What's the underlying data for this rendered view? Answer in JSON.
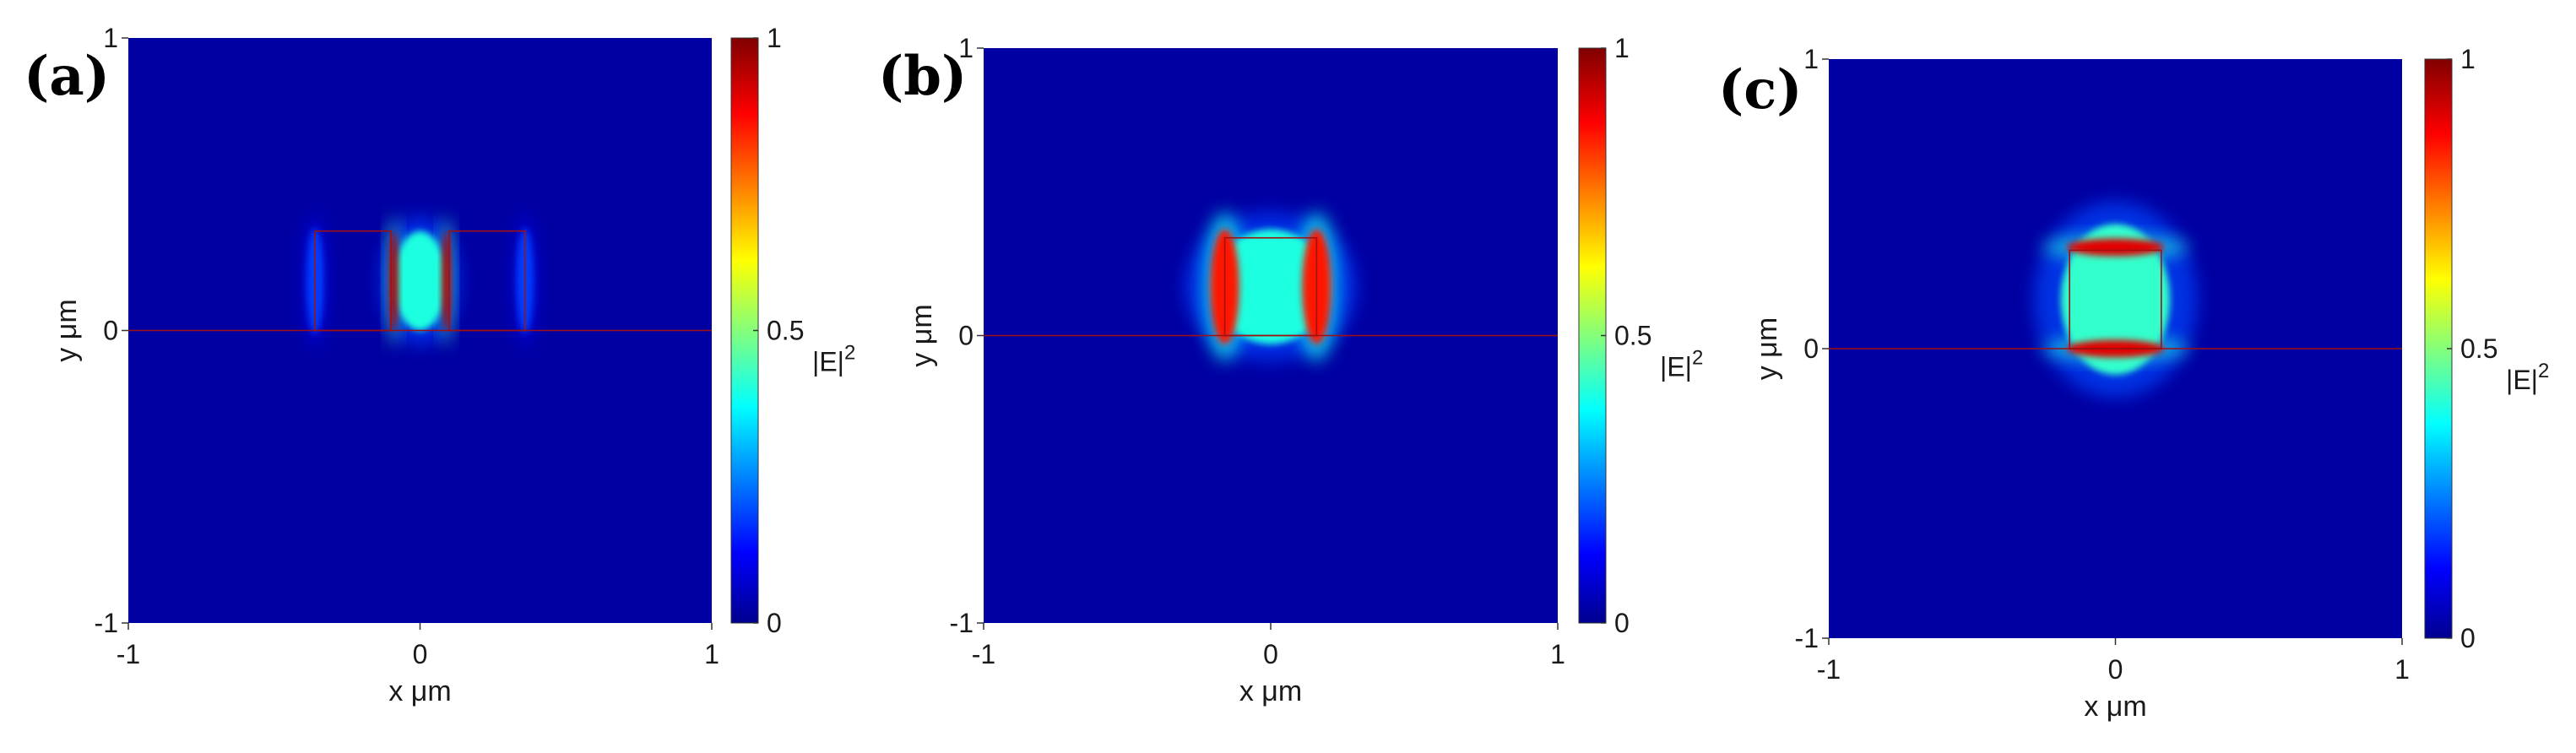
{
  "colormap": [
    "#00008f",
    "#0000ff",
    "#00ffff",
    "#ffff00",
    "#ff0000",
    "#800000"
  ],
  "chart_data": [
    {
      "type": "heatmap",
      "panel_label": "(a)",
      "xlabel": "x μm",
      "ylabel": "y μm",
      "xlim": [
        -1,
        1
      ],
      "ylim": [
        -1,
        1
      ],
      "x_ticks": [
        "-1",
        "0",
        "1"
      ],
      "y_ticks": [
        "-1",
        "0",
        "1"
      ],
      "colorbar": {
        "label": "|E|",
        "label_sup": "2",
        "range": [
          0,
          1
        ],
        "ticks": [
          "0",
          "0.5",
          "1"
        ]
      },
      "structure": "two rectangular waveguides separated by a narrow slot, on a substrate line at y = 0",
      "rects": [
        {
          "x0": -0.36,
          "x1": -0.1,
          "y0": 0.0,
          "y1": 0.34
        },
        {
          "x0": 0.1,
          "x1": 0.36,
          "y0": 0.0,
          "y1": 0.34
        }
      ],
      "substrate_y": 0.0,
      "field_spots": [
        {
          "x": 0.0,
          "y": 0.17,
          "rx": 0.09,
          "ry": 0.17,
          "intensity": 0.4
        },
        {
          "x": -0.09,
          "y": 0.17,
          "rx": 0.015,
          "ry": 0.17,
          "intensity": 0.95
        },
        {
          "x": 0.09,
          "y": 0.17,
          "rx": 0.015,
          "ry": 0.17,
          "intensity": 0.95
        },
        {
          "x": -0.36,
          "y": 0.17,
          "rx": 0.03,
          "ry": 0.18,
          "intensity": 0.18
        },
        {
          "x": 0.36,
          "y": 0.17,
          "rx": 0.03,
          "ry": 0.18,
          "intensity": 0.18
        }
      ]
    },
    {
      "type": "heatmap",
      "panel_label": "(b)",
      "xlabel": "x μm",
      "ylabel": "y μm",
      "xlim": [
        -1,
        1
      ],
      "ylim": [
        -1,
        1
      ],
      "x_ticks": [
        "-1",
        "0",
        "1"
      ],
      "y_ticks": [
        "-1",
        "0",
        "1"
      ],
      "colorbar": {
        "label": "|E|",
        "label_sup": "2",
        "range": [
          0,
          1
        ],
        "ticks": [
          "0",
          "0.5",
          "1"
        ]
      },
      "structure": "single rectangular waveguide on a substrate line at y = 0",
      "rects": [
        {
          "x0": -0.16,
          "x1": 0.16,
          "y0": 0.0,
          "y1": 0.34
        }
      ],
      "substrate_y": 0.0,
      "field_spots": [
        {
          "x": 0.0,
          "y": 0.17,
          "rx": 0.2,
          "ry": 0.2,
          "intensity": 0.4
        },
        {
          "x": -0.16,
          "y": 0.17,
          "rx": 0.05,
          "ry": 0.2,
          "intensity": 0.85
        },
        {
          "x": 0.16,
          "y": 0.17,
          "rx": 0.05,
          "ry": 0.2,
          "intensity": 0.85
        }
      ]
    },
    {
      "type": "heatmap",
      "panel_label": "(c)",
      "xlabel": "x μm",
      "ylabel": "y μm",
      "xlim": [
        -1,
        1
      ],
      "ylim": [
        -1,
        1
      ],
      "x_ticks": [
        "-1",
        "0",
        "1"
      ],
      "y_ticks": [
        "-1",
        "0",
        "1"
      ],
      "colorbar": {
        "label": "|E|",
        "label_sup": "2",
        "range": [
          0,
          1
        ],
        "ticks": [
          "0",
          "0.5",
          "1"
        ]
      },
      "structure": "single rectangular waveguide on a substrate line at y = 0",
      "rects": [
        {
          "x0": -0.16,
          "x1": 0.16,
          "y0": 0.0,
          "y1": 0.34
        }
      ],
      "substrate_y": 0.0,
      "field_spots": [
        {
          "x": 0.0,
          "y": 0.17,
          "rx": 0.19,
          "ry": 0.26,
          "intensity": 0.42
        },
        {
          "x": 0.0,
          "y": 0.35,
          "rx": 0.17,
          "ry": 0.03,
          "intensity": 0.9
        },
        {
          "x": 0.0,
          "y": 0.0,
          "rx": 0.17,
          "ry": 0.03,
          "intensity": 0.9
        }
      ]
    }
  ]
}
